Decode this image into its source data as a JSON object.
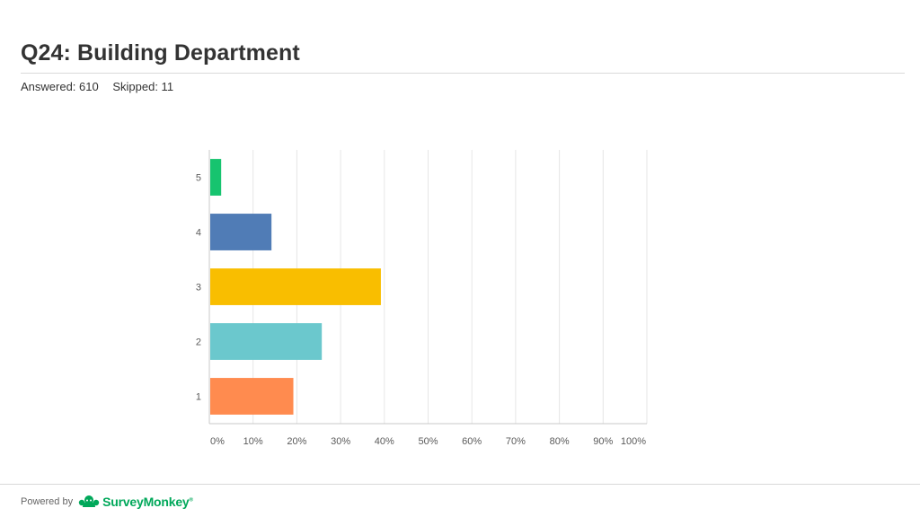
{
  "header": {
    "title": "Q24: Building Department",
    "answered": "Answered: 610",
    "skipped": "Skipped: 11"
  },
  "footer": {
    "powered_by": "Powered by",
    "brand": "SurveyMonkey",
    "trademark": "®",
    "logo_icon": "surveymonkey-logo-icon"
  },
  "chart_data": {
    "type": "bar",
    "orientation": "horizontal",
    "title": "",
    "xlabel": "",
    "ylabel": "",
    "categories": [
      "5",
      "4",
      "3",
      "2",
      "1"
    ],
    "values": [
      2.5,
      14,
      39,
      25.5,
      19
    ],
    "colors": [
      "#17c46f",
      "#507cb6",
      "#f9be00",
      "#6bc8cd",
      "#ff8b4f"
    ],
    "xlim": [
      0,
      100
    ],
    "x_ticks": [
      0,
      10,
      20,
      30,
      40,
      50,
      60,
      70,
      80,
      90,
      100
    ],
    "x_tick_labels": [
      "0%",
      "10%",
      "20%",
      "30%",
      "40%",
      "50%",
      "60%",
      "70%",
      "80%",
      "90%",
      "100%"
    ],
    "grid": true,
    "legend": "none"
  }
}
